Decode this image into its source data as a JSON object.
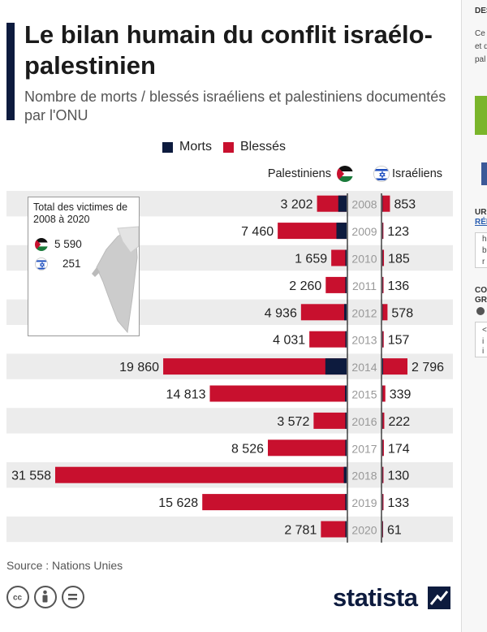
{
  "title": "Le bilan humain du conflit israélo-palestinien",
  "subtitle": "Nombre de morts / blessés israéliens et palestiniens documentés par l'ONU",
  "legend": {
    "deaths": "Morts",
    "injured": "Blessés"
  },
  "colors": {
    "deaths": "#0d1b3e",
    "injured": "#c8102e",
    "stripe": "#ececec",
    "year_text": "#999999"
  },
  "columns": {
    "palestinians": "Palestiniens",
    "israelis": "Israéliens"
  },
  "inset": {
    "title": "Total des victimes de 2008 à 2020",
    "palestinians_total": "5 590",
    "israelis_total": "251"
  },
  "chart_data": {
    "type": "bar",
    "categories": [
      "2008",
      "2009",
      "2010",
      "2011",
      "2012",
      "2013",
      "2014",
      "2015",
      "2016",
      "2017",
      "2018",
      "2019",
      "2020"
    ],
    "palestinians": {
      "total_labels": [
        "3 202",
        "7 460",
        "1 659",
        "2 260",
        "4 936",
        "4 031",
        "19 860",
        "14 813",
        "3 572",
        "8 526",
        "31 558",
        "15 628",
        "2 781"
      ],
      "totals": [
        3202,
        7460,
        1659,
        2260,
        4936,
        4031,
        19860,
        14813,
        3572,
        8526,
        31558,
        15628,
        2781
      ],
      "deaths": [
        900,
        1100,
        90,
        120,
        260,
        40,
        2300,
        170,
        110,
        80,
        300,
        140,
        30
      ]
    },
    "israelis": {
      "totals": [
        853,
        123,
        185,
        136,
        578,
        157,
        2796,
        339,
        222,
        174,
        130,
        133,
        61
      ],
      "deaths": [
        30,
        9,
        9,
        11,
        7,
        6,
        88,
        30,
        17,
        18,
        14,
        10,
        3
      ]
    }
  },
  "source": "Source : Nations Unies",
  "brand": "statista",
  "sidebar": {
    "t1": "DES",
    "t2": "Ce",
    "t3": "et d",
    "t4": "pal",
    "t5": "UR",
    "t6": "RÉI",
    "t7": "h",
    "t8": "b",
    "t9": "r",
    "t10": "CO",
    "t11": "GRA",
    "t12": "<",
    "t13": "i",
    "t14": "i"
  }
}
